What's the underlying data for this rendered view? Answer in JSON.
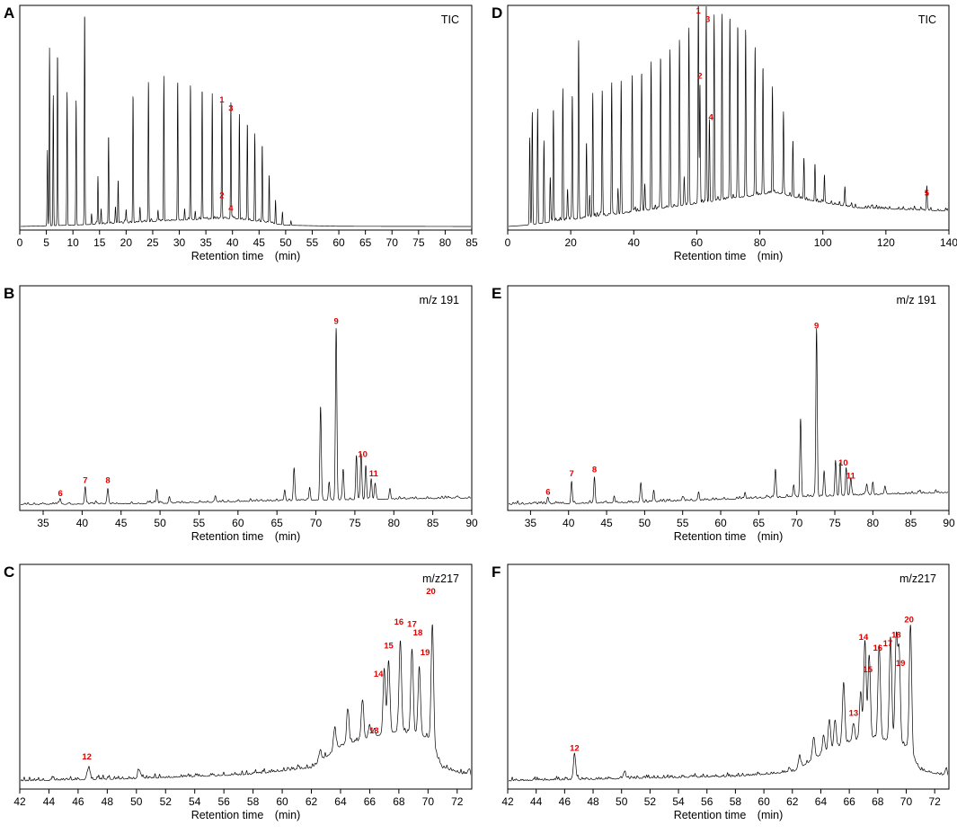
{
  "chart_data": [
    {
      "id": "A",
      "type": "line",
      "panel_label": "A",
      "channel": "TIC",
      "xlabel": "Retention time　(min)",
      "xlim": [
        0,
        85
      ],
      "x_ticks_step": 5,
      "ylim": [
        0,
        100
      ],
      "baseline": [
        [
          0,
          0
        ],
        [
          5,
          0.3
        ],
        [
          12,
          0.8
        ],
        [
          20,
          1.5
        ],
        [
          30,
          2.8
        ],
        [
          40,
          3.6
        ],
        [
          45,
          2.2
        ],
        [
          50,
          0.6
        ],
        [
          60,
          0.1
        ],
        [
          85,
          0
        ]
      ],
      "noise_range": [
        14,
        48
      ],
      "noise_amp": 1.5,
      "noise_spacing": 0.45,
      "peak_width": 0.09,
      "peaks": [
        [
          5.2,
          35
        ],
        [
          5.6,
          82
        ],
        [
          6.3,
          60
        ],
        [
          7.1,
          80
        ],
        [
          8.9,
          62
        ],
        [
          10.6,
          58
        ],
        [
          12.2,
          99
        ],
        [
          14.7,
          22
        ],
        [
          16.7,
          41
        ],
        [
          18.5,
          20
        ],
        [
          21.3,
          59
        ],
        [
          24.2,
          65
        ],
        [
          27.1,
          67
        ],
        [
          29.7,
          65
        ],
        [
          32.1,
          63
        ],
        [
          34.3,
          60
        ],
        [
          36.2,
          58
        ],
        [
          38.0,
          55
        ],
        [
          39.7,
          52
        ],
        [
          41.3,
          48
        ],
        [
          42.8,
          44
        ],
        [
          44.2,
          40
        ],
        [
          45.6,
          35
        ],
        [
          46.9,
          22
        ],
        [
          48.1,
          11
        ],
        [
          49.4,
          6
        ],
        [
          51.0,
          2
        ],
        [
          13.5,
          5
        ],
        [
          15.3,
          7
        ],
        [
          18.0,
          7
        ],
        [
          20.0,
          6
        ],
        [
          22.6,
          6
        ],
        [
          26.0,
          5
        ],
        [
          31.0,
          5
        ],
        [
          33.0,
          4
        ]
      ],
      "labels": [
        {
          "text": "1",
          "x": 38.0,
          "y": 57
        },
        {
          "text": "3",
          "x": 39.7,
          "y": 53
        },
        {
          "text": "2",
          "x": 38.0,
          "y": 13
        },
        {
          "text": "4",
          "x": 39.7,
          "y": 7
        }
      ]
    },
    {
      "id": "D",
      "type": "line",
      "panel_label": "D",
      "channel": "TIC",
      "xlabel": "Retention time　(min)",
      "xlim": [
        0,
        140
      ],
      "x_ticks_step": 20,
      "ylim": [
        0,
        100
      ],
      "baseline": [
        [
          0,
          0
        ],
        [
          5,
          0.5
        ],
        [
          20,
          3
        ],
        [
          40,
          6.5
        ],
        [
          60,
          10.5
        ],
        [
          75,
          13.5
        ],
        [
          85,
          15.5
        ],
        [
          95,
          12
        ],
        [
          110,
          8.5
        ],
        [
          140,
          7
        ]
      ],
      "noise_range": [
        12,
        140
      ],
      "noise_amp": 1.8,
      "noise_spacing": 0.6,
      "peak_width": 0.18,
      "peaks": [
        [
          7.0,
          40
        ],
        [
          7.8,
          52
        ],
        [
          9.5,
          53
        ],
        [
          11.5,
          38
        ],
        [
          13.5,
          21
        ],
        [
          14.5,
          52
        ],
        [
          17.5,
          60
        ],
        [
          20.5,
          56
        ],
        [
          22.5,
          82
        ],
        [
          25.0,
          35
        ],
        [
          27.0,
          57
        ],
        [
          30.0,
          58
        ],
        [
          33.0,
          61
        ],
        [
          36.0,
          61
        ],
        [
          39.5,
          63
        ],
        [
          42.5,
          64
        ],
        [
          45.5,
          67
        ],
        [
          48.5,
          70
        ],
        [
          51.5,
          72
        ],
        [
          54.5,
          77
        ],
        [
          57.5,
          82
        ],
        [
          60.5,
          95
        ],
        [
          63.0,
          91
        ],
        [
          65.5,
          86
        ],
        [
          68.0,
          86
        ],
        [
          70.5,
          84
        ],
        [
          73.0,
          80
        ],
        [
          75.5,
          77
        ],
        [
          78.5,
          68
        ],
        [
          81.0,
          59
        ],
        [
          84.0,
          49
        ],
        [
          87.5,
          38
        ],
        [
          90.5,
          26
        ],
        [
          94.0,
          19
        ],
        [
          97.5,
          17
        ],
        [
          100.5,
          13
        ],
        [
          107.0,
          9
        ],
        [
          133.0,
          10.5
        ],
        [
          19.0,
          14
        ],
        [
          26.0,
          9
        ],
        [
          35.0,
          12
        ],
        [
          43.5,
          11
        ],
        [
          56.0,
          13
        ],
        [
          61.0,
          54
        ],
        [
          64.0,
          38
        ]
      ],
      "labels": [
        {
          "text": "1",
          "x": 60.5,
          "y": 98
        },
        {
          "text": "3",
          "x": 63.5,
          "y": 94
        },
        {
          "text": "2",
          "x": 61.0,
          "y": 68
        },
        {
          "text": "4",
          "x": 64.5,
          "y": 49
        },
        {
          "text": "5",
          "x": 133.0,
          "y": 14
        }
      ]
    },
    {
      "id": "B",
      "type": "line",
      "panel_label": "B",
      "channel": "m/z 191",
      "xlabel": "Retention time　(min)",
      "xlim": [
        32,
        90
      ],
      "x_ticks_step": 5,
      "ylim": [
        0,
        100
      ],
      "baseline": [
        [
          32,
          1
        ],
        [
          50,
          1.5
        ],
        [
          62,
          2.5
        ],
        [
          70,
          3
        ],
        [
          80,
          3.5
        ],
        [
          90,
          4
        ]
      ],
      "noise_range": [
        32,
        90
      ],
      "noise_amp": 1.1,
      "noise_spacing": 0.35,
      "peak_width": 0.13,
      "peaks": [
        [
          37.2,
          2
        ],
        [
          40.4,
          8
        ],
        [
          43.3,
          7
        ],
        [
          49.6,
          6
        ],
        [
          51.2,
          3
        ],
        [
          57.1,
          3
        ],
        [
          66.0,
          5
        ],
        [
          67.2,
          15
        ],
        [
          69.2,
          6
        ],
        [
          70.6,
          43
        ],
        [
          71.7,
          8
        ],
        [
          72.6,
          79
        ],
        [
          73.5,
          14
        ],
        [
          75.2,
          20
        ],
        [
          75.8,
          21
        ],
        [
          76.4,
          15
        ],
        [
          77.1,
          9
        ],
        [
          77.6,
          7
        ],
        [
          79.5,
          5
        ]
      ],
      "labels": [
        {
          "text": "6",
          "x": 37.2,
          "y": 5
        },
        {
          "text": "7",
          "x": 40.4,
          "y": 11
        },
        {
          "text": "8",
          "x": 43.3,
          "y": 11
        },
        {
          "text": "9",
          "x": 72.6,
          "y": 84
        },
        {
          "text": "10",
          "x": 76.0,
          "y": 23
        },
        {
          "text": "11",
          "x": 77.4,
          "y": 14
        }
      ]
    },
    {
      "id": "E",
      "type": "line",
      "panel_label": "E",
      "channel": "m/z 191",
      "xlabel": "Retention time　(min)",
      "xlim": [
        32,
        90
      ],
      "x_ticks_step": 5,
      "ylim": [
        0,
        100
      ],
      "baseline": [
        [
          32,
          1
        ],
        [
          50,
          2
        ],
        [
          62,
          3.5
        ],
        [
          70,
          4.5
        ],
        [
          80,
          5.5
        ],
        [
          90,
          6.5
        ]
      ],
      "noise_range": [
        32,
        90
      ],
      "noise_amp": 1.2,
      "noise_spacing": 0.35,
      "peak_width": 0.13,
      "peaks": [
        [
          37.3,
          2.5
        ],
        [
          40.4,
          10
        ],
        [
          43.4,
          12
        ],
        [
          46.0,
          2
        ],
        [
          49.5,
          9
        ],
        [
          51.2,
          5
        ],
        [
          55.0,
          2
        ],
        [
          57.1,
          4
        ],
        [
          63.2,
          3
        ],
        [
          67.2,
          13
        ],
        [
          69.6,
          5
        ],
        [
          70.5,
          36
        ],
        [
          72.6,
          77
        ],
        [
          73.6,
          11
        ],
        [
          75.1,
          16
        ],
        [
          75.7,
          15
        ],
        [
          76.5,
          12
        ],
        [
          77.1,
          8
        ],
        [
          79.2,
          5
        ],
        [
          80.0,
          5
        ],
        [
          81.6,
          3
        ]
      ],
      "labels": [
        {
          "text": "6",
          "x": 37.3,
          "y": 5.5
        },
        {
          "text": "7",
          "x": 40.4,
          "y": 14
        },
        {
          "text": "8",
          "x": 43.4,
          "y": 16
        },
        {
          "text": "9",
          "x": 72.6,
          "y": 82
        },
        {
          "text": "10",
          "x": 76.1,
          "y": 19
        },
        {
          "text": "11",
          "x": 77.1,
          "y": 13
        }
      ]
    },
    {
      "id": "C",
      "type": "line",
      "panel_label": "C",
      "channel": "m/z217",
      "xlabel": "Retention time　(min)",
      "xlim": [
        42,
        73
      ],
      "x_ticks_step": 2,
      "ylim": [
        0,
        100
      ],
      "baseline": [
        [
          42,
          2
        ],
        [
          50,
          3
        ],
        [
          58,
          5
        ],
        [
          62,
          8
        ],
        [
          64,
          18
        ],
        [
          66,
          22
        ],
        [
          68,
          25
        ],
        [
          70,
          22
        ],
        [
          71,
          8
        ],
        [
          73,
          4
        ]
      ],
      "noise_range": [
        42,
        73
      ],
      "noise_amp": 1.8,
      "noise_spacing": 0.14,
      "peak_width": 0.12,
      "peaks": [
        [
          46.7,
          5
        ],
        [
          50.2,
          4
        ],
        [
          62.6,
          5
        ],
        [
          63.6,
          10
        ],
        [
          64.5,
          15
        ],
        [
          65.5,
          18
        ],
        [
          66.0,
          5
        ],
        [
          66.3,
          3
        ],
        [
          67.0,
          28
        ],
        [
          67.3,
          33
        ],
        [
          68.1,
          41
        ],
        [
          68.9,
          39
        ],
        [
          69.4,
          31
        ],
        [
          70.3,
          56
        ],
        [
          72.8,
          3
        ]
      ],
      "labels": [
        {
          "text": "12",
          "x": 46.6,
          "y": 12
        },
        {
          "text": "13",
          "x": 66.3,
          "y": 24
        },
        {
          "text": "14",
          "x": 66.6,
          "y": 50
        },
        {
          "text": "15",
          "x": 67.3,
          "y": 63
        },
        {
          "text": "16",
          "x": 68.0,
          "y": 74
        },
        {
          "text": "17",
          "x": 68.9,
          "y": 73
        },
        {
          "text": "18",
          "x": 69.3,
          "y": 69
        },
        {
          "text": "19",
          "x": 69.8,
          "y": 60
        },
        {
          "text": "20",
          "x": 70.2,
          "y": 88
        }
      ]
    },
    {
      "id": "F",
      "type": "line",
      "panel_label": "F",
      "channel": "m/z217",
      "xlabel": "Retention time　(min)",
      "xlim": [
        42,
        73
      ],
      "x_ticks_step": 2,
      "ylim": [
        0,
        100
      ],
      "baseline": [
        [
          42,
          2
        ],
        [
          50,
          3
        ],
        [
          58,
          4
        ],
        [
          62,
          6
        ],
        [
          64,
          14
        ],
        [
          66,
          20
        ],
        [
          68,
          22
        ],
        [
          70,
          18
        ],
        [
          71,
          7
        ],
        [
          73,
          4
        ]
      ],
      "noise_range": [
        42,
        73
      ],
      "noise_amp": 1.5,
      "noise_spacing": 0.14,
      "peak_width": 0.12,
      "peaks": [
        [
          46.7,
          11
        ],
        [
          50.2,
          3
        ],
        [
          61.8,
          2
        ],
        [
          62.5,
          5
        ],
        [
          63.5,
          10
        ],
        [
          64.2,
          8
        ],
        [
          64.6,
          14
        ],
        [
          65.0,
          13
        ],
        [
          65.6,
          28
        ],
        [
          66.3,
          8
        ],
        [
          66.8,
          22
        ],
        [
          67.1,
          45
        ],
        [
          67.4,
          38
        ],
        [
          68.1,
          42
        ],
        [
          68.9,
          47
        ],
        [
          69.3,
          48
        ],
        [
          69.5,
          42
        ],
        [
          70.3,
          59
        ],
        [
          72.8,
          3
        ]
      ],
      "labels": [
        {
          "text": "12",
          "x": 46.7,
          "y": 16
        },
        {
          "text": "13",
          "x": 66.3,
          "y": 32
        },
        {
          "text": "14",
          "x": 67.0,
          "y": 67
        },
        {
          "text": "15",
          "x": 67.3,
          "y": 52
        },
        {
          "text": "16",
          "x": 68.0,
          "y": 62
        },
        {
          "text": "17",
          "x": 68.7,
          "y": 64
        },
        {
          "text": "18",
          "x": 69.3,
          "y": 68
        },
        {
          "text": "19",
          "x": 69.6,
          "y": 55
        },
        {
          "text": "20",
          "x": 70.2,
          "y": 75
        }
      ]
    }
  ]
}
